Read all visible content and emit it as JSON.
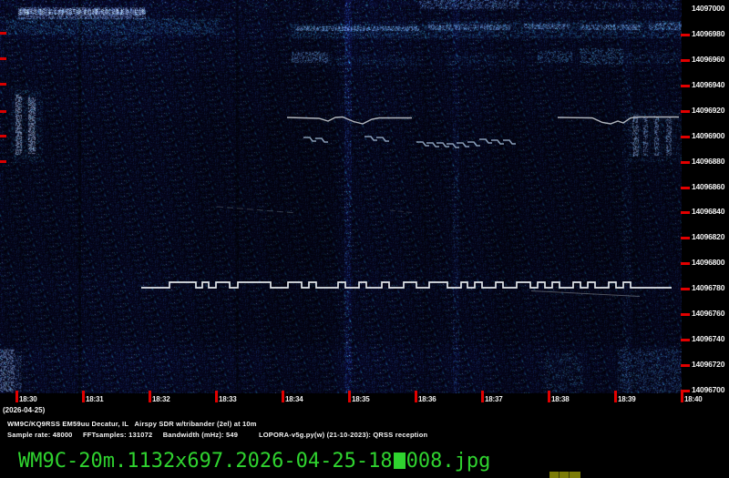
{
  "frequency_axis": {
    "labels": [
      "14097000",
      "14096980",
      "14096960",
      "14096940",
      "14096920",
      "14096900",
      "14096880",
      "14096860",
      "14096840",
      "14096820",
      "14096800",
      "14096780",
      "14096760",
      "14096740",
      "14096720",
      "14096700"
    ],
    "tick_color": "#e10000"
  },
  "time_axis": {
    "labels": [
      "18:30",
      "18:31",
      "18:32",
      "18:33",
      "18:34",
      "18:35",
      "18:36",
      "18:37",
      "18:38",
      "18:39",
      "18:40"
    ],
    "date_label": "(2026-04-25)",
    "tick_color": "#e10000"
  },
  "status": {
    "line1": "WM9C/KQ9RSS EM59uu Decatur, IL   Airspy SDR w/tribander (2el) at 10m",
    "line2": "Sample rate: 48000     FFTsamples: 131072     Bandwidth (mHz): 549          LOPORA-v5g.py(w) (21-10-2023): QRSS reception"
  },
  "filename_bar": {
    "prefix": "WM9C-20m.1132x697.2026-04-25-18",
    "suffix": "008.jpg",
    "color": "#2fd32f"
  },
  "colors": {
    "background": "#000000",
    "spectrogram_base": "#04051a",
    "tick_red": "#e10000",
    "text_white": "#f2f2f2",
    "filename_green": "#2fd32f",
    "olive_bar": "#7c7c08"
  }
}
